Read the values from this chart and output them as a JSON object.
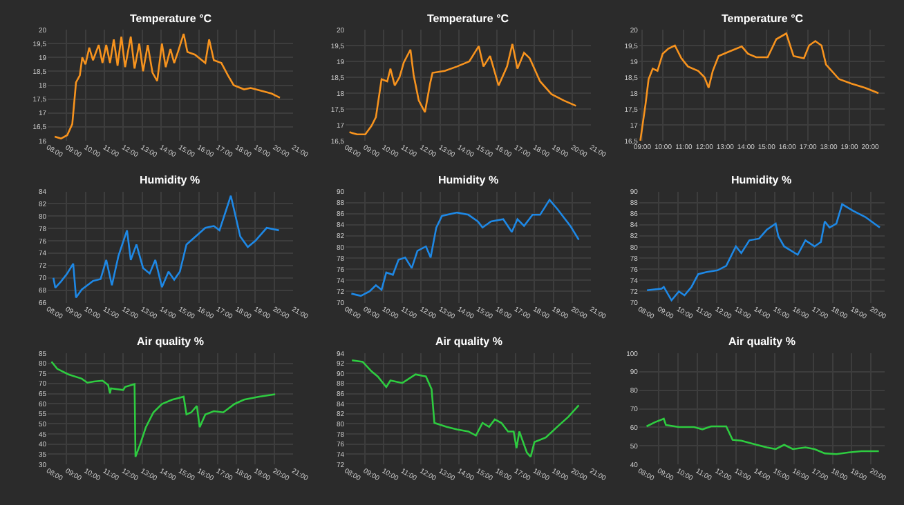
{
  "chart_data": [
    {
      "type": "line",
      "title": "Temperature °C",
      "color": "#f7931e",
      "grid": true,
      "xlim": [
        8,
        21
      ],
      "xticks": [
        {
          "value": 8,
          "label": "08:00"
        },
        {
          "value": 9,
          "label": "09:00"
        },
        {
          "value": 10,
          "label": "10:00"
        },
        {
          "value": 11,
          "label": "11:00"
        },
        {
          "value": 12,
          "label": "12:00"
        },
        {
          "value": 13,
          "label": "13:00"
        },
        {
          "value": 14,
          "label": "14:00"
        },
        {
          "value": 15,
          "label": "15:00"
        },
        {
          "value": 16,
          "label": "16:00"
        },
        {
          "value": 17,
          "label": "17:00"
        },
        {
          "value": 18,
          "label": "18:00"
        },
        {
          "value": 19,
          "label": "19:00"
        },
        {
          "value": 20,
          "label": "20:00"
        },
        {
          "value": 21,
          "label": "21:00"
        }
      ],
      "ylim": [
        16,
        20
      ],
      "yticks": [
        16,
        {
          "value": 16.5,
          "label": "16,5"
        },
        17,
        {
          "value": 17.5,
          "label": "17,5"
        },
        18,
        {
          "value": 18.5,
          "label": "18,5"
        },
        19,
        {
          "value": 19.5,
          "label": "19,5"
        },
        20
      ],
      "x": [
        8.37,
        8.7,
        9.03,
        9.3,
        9.5,
        9.7,
        9.83,
        10.0,
        10.2,
        10.4,
        10.7,
        10.9,
        11.1,
        11.3,
        11.5,
        11.7,
        11.9,
        12.1,
        12.4,
        12.6,
        12.85,
        13.05,
        13.3,
        13.55,
        13.8,
        14.05,
        14.25,
        14.5,
        14.7,
        14.9,
        15.2,
        15.4,
        15.8,
        16.35,
        16.55,
        16.8,
        17.2,
        17.55,
        17.85,
        18.4,
        18.75,
        19.3,
        19.85,
        20.3
      ],
      "values": [
        16.15,
        16.08,
        16.2,
        16.6,
        18.1,
        18.35,
        19.0,
        18.75,
        19.35,
        18.9,
        19.45,
        18.8,
        19.45,
        18.8,
        19.65,
        18.7,
        19.75,
        18.65,
        19.75,
        18.6,
        19.5,
        18.5,
        19.45,
        18.45,
        18.15,
        19.5,
        18.65,
        19.3,
        18.8,
        19.2,
        19.85,
        19.2,
        19.1,
        18.8,
        19.65,
        18.9,
        18.8,
        18.35,
        18.0,
        17.85,
        17.9,
        17.8,
        17.7,
        17.55
      ]
    },
    {
      "type": "line",
      "title": "Temperature °C",
      "color": "#f7931e",
      "grid": true,
      "xlim": [
        8,
        21
      ],
      "xticks": [
        {
          "value": 8,
          "label": "08:00"
        },
        {
          "value": 9,
          "label": "09:00"
        },
        {
          "value": 10,
          "label": "10:00"
        },
        {
          "value": 11,
          "label": "11:00"
        },
        {
          "value": 12,
          "label": "12:00"
        },
        {
          "value": 13,
          "label": "13:00"
        },
        {
          "value": 14,
          "label": "14:00"
        },
        {
          "value": 15,
          "label": "15:00"
        },
        {
          "value": 16,
          "label": "16:00"
        },
        {
          "value": 17,
          "label": "17:00"
        },
        {
          "value": 18,
          "label": "18:00"
        },
        {
          "value": 19,
          "label": "19:00"
        },
        {
          "value": 20,
          "label": "20:00"
        },
        {
          "value": 21,
          "label": "21:00"
        }
      ],
      "ylim": [
        16.5,
        20
      ],
      "yticks": [
        {
          "value": 16.5,
          "label": "16,5"
        },
        17,
        {
          "value": 17.5,
          "label": "17,5"
        },
        18,
        {
          "value": 18.5,
          "label": "18,5"
        },
        19,
        {
          "value": 19.5,
          "label": "19,5"
        },
        20
      ],
      "x": [
        8.2,
        8.6,
        9.04,
        9.37,
        9.6,
        9.9,
        10.2,
        10.37,
        10.6,
        10.85,
        11.08,
        11.43,
        11.6,
        11.87,
        12.2,
        12.47,
        12.6,
        13.25,
        13.9,
        14.55,
        15.05,
        15.3,
        15.65,
        16.1,
        16.55,
        16.83,
        17.1,
        17.45,
        17.75,
        18.3,
        18.9,
        19.55,
        20.2
      ],
      "values": [
        16.77,
        16.7,
        16.7,
        16.97,
        17.24,
        18.44,
        18.37,
        18.77,
        18.24,
        18.5,
        18.97,
        19.37,
        18.57,
        17.77,
        17.4,
        18.3,
        18.64,
        18.7,
        18.84,
        19.0,
        19.48,
        18.84,
        19.17,
        18.24,
        18.84,
        19.55,
        18.77,
        19.27,
        19.1,
        18.37,
        17.97,
        17.77,
        17.6
      ]
    },
    {
      "type": "line",
      "title": "Temperature °C",
      "color": "#f7931e",
      "grid": true,
      "xlim": [
        8.85,
        20.7
      ],
      "xticks": [
        {
          "value": 9,
          "label": "09:00"
        },
        {
          "value": 10,
          "label": "10:00"
        },
        {
          "value": 11,
          "label": "11:00"
        },
        {
          "value": 12,
          "label": "12:00"
        },
        {
          "value": 13,
          "label": "13:00"
        },
        {
          "value": 14,
          "label": "14:00"
        },
        {
          "value": 15,
          "label": "15:00"
        },
        {
          "value": 16,
          "label": "16:00"
        },
        {
          "value": 17,
          "label": "17:00"
        },
        {
          "value": 18,
          "label": "18:00"
        },
        {
          "value": 19,
          "label": "19:00"
        },
        {
          "value": 20,
          "label": "20:00"
        }
      ],
      "ylim": [
        16.5,
        20
      ],
      "yticks": [
        {
          "value": 16.5,
          "label": "16,5"
        },
        17,
        {
          "value": 17.5,
          "label": "17,5"
        },
        18,
        {
          "value": 18.5,
          "label": "18,5"
        },
        19,
        {
          "value": 19.5,
          "label": "19,5"
        },
        20
      ],
      "x": [
        8.9,
        9.15,
        9.3,
        9.5,
        9.73,
        9.98,
        10.25,
        10.57,
        10.88,
        11.2,
        11.7,
        12.0,
        12.2,
        12.4,
        12.68,
        13.15,
        13.8,
        14.1,
        14.5,
        15.05,
        15.47,
        15.95,
        16.3,
        16.8,
        17.05,
        17.35,
        17.65,
        17.87,
        18.5,
        19.1,
        19.75,
        20.4
      ],
      "values": [
        16.5,
        17.64,
        18.44,
        18.77,
        18.7,
        19.24,
        19.4,
        19.5,
        19.1,
        18.84,
        18.7,
        18.5,
        18.17,
        18.7,
        19.17,
        19.3,
        19.47,
        19.24,
        19.13,
        19.13,
        19.7,
        19.88,
        19.17,
        19.1,
        19.5,
        19.64,
        19.5,
        18.9,
        18.44,
        18.3,
        18.17,
        18.0
      ]
    },
    {
      "type": "line",
      "title": "Humidity %",
      "color": "#1e88e5",
      "grid": true,
      "xlim": [
        8,
        21
      ],
      "xticks": [
        {
          "value": 8,
          "label": "08:00"
        },
        {
          "value": 9,
          "label": "09:00"
        },
        {
          "value": 10,
          "label": "10:00"
        },
        {
          "value": 11,
          "label": "11:00"
        },
        {
          "value": 12,
          "label": "12:00"
        },
        {
          "value": 13,
          "label": "13:00"
        },
        {
          "value": 14,
          "label": "14:00"
        },
        {
          "value": 15,
          "label": "15:00"
        },
        {
          "value": 16,
          "label": "16:00"
        },
        {
          "value": 17,
          "label": "17:00"
        },
        {
          "value": 18,
          "label": "18:00"
        },
        {
          "value": 19,
          "label": "19:00"
        },
        {
          "value": 20,
          "label": "20:00"
        },
        {
          "value": 21,
          "label": "21:00"
        }
      ],
      "ylim": [
        66,
        84
      ],
      "yticks": [
        66,
        68,
        70,
        72,
        74,
        76,
        78,
        80,
        82,
        84
      ],
      "x": [
        8.3,
        8.4,
        8.7,
        9.03,
        9.35,
        9.5,
        9.8,
        10.1,
        10.4,
        10.8,
        11.1,
        11.4,
        11.75,
        12.2,
        12.4,
        12.7,
        13.05,
        13.4,
        13.7,
        14.05,
        14.4,
        14.7,
        15.0,
        15.35,
        16.35,
        16.8,
        17.1,
        17.7,
        18.2,
        18.6,
        19.0,
        19.6,
        20.25
      ],
      "values": [
        70,
        68.4,
        69.4,
        70.7,
        72.3,
        66.8,
        68.1,
        68.8,
        69.5,
        69.8,
        72.9,
        68.8,
        73.6,
        77.7,
        72.9,
        75.4,
        71.6,
        70.7,
        72.9,
        68.5,
        71.0,
        69.7,
        71.0,
        75.4,
        78.1,
        78.4,
        77.7,
        83.3,
        76.7,
        75.0,
        76.0,
        78.1,
        77.7
      ]
    },
    {
      "type": "line",
      "title": "Humidity %",
      "color": "#1e88e5",
      "grid": true,
      "xlim": [
        8,
        21
      ],
      "xticks": [
        {
          "value": 8,
          "label": "08:00"
        },
        {
          "value": 9,
          "label": "09:00"
        },
        {
          "value": 10,
          "label": "10:00"
        },
        {
          "value": 11,
          "label": "11:00"
        },
        {
          "value": 12,
          "label": "12:00"
        },
        {
          "value": 13,
          "label": "13:00"
        },
        {
          "value": 14,
          "label": "14:00"
        },
        {
          "value": 15,
          "label": "15:00"
        },
        {
          "value": 16,
          "label": "16:00"
        },
        {
          "value": 17,
          "label": "17:00"
        },
        {
          "value": 18,
          "label": "18:00"
        },
        {
          "value": 19,
          "label": "19:00"
        },
        {
          "value": 20,
          "label": "20:00"
        },
        {
          "value": 21,
          "label": "21:00"
        }
      ],
      "ylim": [
        70,
        90
      ],
      "yticks": [
        70,
        72,
        74,
        76,
        78,
        80,
        82,
        84,
        86,
        88,
        90
      ],
      "x": [
        8.3,
        8.8,
        9.26,
        9.6,
        9.9,
        10.15,
        10.5,
        10.8,
        11.15,
        11.5,
        11.8,
        12.25,
        12.5,
        12.8,
        13.1,
        13.9,
        14.5,
        15.0,
        15.25,
        15.7,
        16.35,
        16.8,
        17.1,
        17.45,
        17.9,
        18.3,
        18.8,
        19.2,
        19.9,
        20.35
      ],
      "values": [
        71.6,
        71.2,
        72.0,
        73.1,
        72.3,
        75.4,
        75.0,
        77.7,
        78.1,
        76.2,
        79.3,
        80.1,
        78.1,
        83.5,
        85.6,
        86.2,
        85.8,
        84.6,
        83.5,
        84.6,
        85.0,
        82.7,
        85.0,
        83.8,
        85.8,
        85.8,
        88.5,
        86.9,
        83.8,
        81.3
      ]
    },
    {
      "type": "line",
      "title": "Humidity %",
      "color": "#1e88e5",
      "grid": true,
      "xlim": [
        8,
        20.7
      ],
      "xticks": [
        {
          "value": 8,
          "label": "08:00"
        },
        {
          "value": 9,
          "label": "09:00"
        },
        {
          "value": 10,
          "label": "10:00"
        },
        {
          "value": 11,
          "label": "11:00"
        },
        {
          "value": 12,
          "label": "12:00"
        },
        {
          "value": 13,
          "label": "13:00"
        },
        {
          "value": 14,
          "label": "14:00"
        },
        {
          "value": 15,
          "label": "15:00"
        },
        {
          "value": 16,
          "label": "16:00"
        },
        {
          "value": 17,
          "label": "17:00"
        },
        {
          "value": 18,
          "label": "18:00"
        },
        {
          "value": 19,
          "label": "19:00"
        },
        {
          "value": 20,
          "label": "20:00"
        }
      ],
      "ylim": [
        70,
        90
      ],
      "yticks": [
        70,
        72,
        74,
        76,
        78,
        80,
        82,
        84,
        86,
        88,
        90
      ],
      "x": [
        8.4,
        9.16,
        9.27,
        9.67,
        10.05,
        10.34,
        10.7,
        11.05,
        11.5,
        12.05,
        12.5,
        13.0,
        13.28,
        13.7,
        14.2,
        14.6,
        15.06,
        15.2,
        15.5,
        16.2,
        16.6,
        17.07,
        17.4,
        17.6,
        17.85,
        18.2,
        18.5,
        19.07,
        19.7,
        20.45
      ],
      "values": [
        72.2,
        72.5,
        72.8,
        70.4,
        72.0,
        71.3,
        72.8,
        75.1,
        75.5,
        75.8,
        76.6,
        80.1,
        78.9,
        81.2,
        81.5,
        83.1,
        84.2,
        81.9,
        80.1,
        78.6,
        81.2,
        80.1,
        80.9,
        84.6,
        83.5,
        84.2,
        87.7,
        86.5,
        85.4,
        83.5
      ]
    },
    {
      "type": "line",
      "title": "Air quality %",
      "color": "#2ecc40",
      "grid": true,
      "xlim": [
        8,
        21
      ],
      "xticks": [
        {
          "value": 8,
          "label": "08:00"
        },
        {
          "value": 9,
          "label": "09:00"
        },
        {
          "value": 10,
          "label": "10:00"
        },
        {
          "value": 11,
          "label": "11:00"
        },
        {
          "value": 12,
          "label": "12:00"
        },
        {
          "value": 13,
          "label": "13:00"
        },
        {
          "value": 14,
          "label": "14:00"
        },
        {
          "value": 15,
          "label": "15:00"
        },
        {
          "value": 16,
          "label": "16:00"
        },
        {
          "value": 17,
          "label": "17:00"
        },
        {
          "value": 18,
          "label": "18:00"
        },
        {
          "value": 19,
          "label": "19:00"
        },
        {
          "value": 20,
          "label": "20:00"
        },
        {
          "value": 21,
          "label": "21:00"
        }
      ],
      "ylim": [
        30,
        85
      ],
      "yticks": [
        30,
        35,
        40,
        45,
        50,
        55,
        60,
        65,
        70,
        75,
        80,
        85
      ],
      "x": [
        8.2,
        8.5,
        9.1,
        9.8,
        10.1,
        10.45,
        10.9,
        11.2,
        11.3,
        11.35,
        12.0,
        12.1,
        12.6,
        12.65,
        12.9,
        13.2,
        13.6,
        14.05,
        14.6,
        15.2,
        15.35,
        15.6,
        15.9,
        16.05,
        16.35,
        16.8,
        17.3,
        17.9,
        18.4,
        19.2,
        20.05
      ],
      "values": [
        80.8,
        77.3,
        74.5,
        72.4,
        70.4,
        71,
        71.4,
        69.3,
        65.1,
        67.6,
        66.8,
        68.3,
        69.7,
        33.7,
        40,
        48.4,
        55.7,
        59.9,
        62,
        63.5,
        54.7,
        55.7,
        58.9,
        48.4,
        54.7,
        56.3,
        55.7,
        59.9,
        62,
        63.5,
        64.7
      ]
    },
    {
      "type": "line",
      "title": "Air quality %",
      "color": "#2ecc40",
      "grid": true,
      "xlim": [
        8,
        21
      ],
      "xticks": [
        {
          "value": 8,
          "label": "08:00"
        },
        {
          "value": 9,
          "label": "09:00"
        },
        {
          "value": 10,
          "label": "10:00"
        },
        {
          "value": 11,
          "label": "11:00"
        },
        {
          "value": 12,
          "label": "12:00"
        },
        {
          "value": 13,
          "label": "13:00"
        },
        {
          "value": 14,
          "label": "14:00"
        },
        {
          "value": 15,
          "label": "15:00"
        },
        {
          "value": 16,
          "label": "16:00"
        },
        {
          "value": 17,
          "label": "17:00"
        },
        {
          "value": 18,
          "label": "18:00"
        },
        {
          "value": 19,
          "label": "19:00"
        },
        {
          "value": 20,
          "label": "20:00"
        },
        {
          "value": 21,
          "label": "21:00"
        }
      ],
      "ylim": [
        72,
        94
      ],
      "yticks": [
        72,
        74,
        76,
        78,
        80,
        82,
        84,
        86,
        88,
        90,
        92,
        94
      ],
      "x": [
        8.33,
        8.9,
        9.37,
        9.7,
        10.15,
        10.37,
        11.0,
        11.7,
        12.25,
        12.55,
        12.7,
        13.35,
        13.9,
        14.5,
        14.9,
        15.25,
        15.6,
        15.9,
        16.25,
        16.6,
        16.9,
        17.05,
        17.2,
        17.6,
        17.8,
        18.0,
        18.6,
        19.2,
        19.8,
        20.35
      ],
      "values": [
        92.6,
        92.3,
        90.4,
        89.4,
        87.3,
        88.6,
        88.1,
        89.8,
        89.4,
        86.9,
        80.2,
        79.4,
        78.9,
        78.5,
        77.7,
        80.2,
        79.4,
        80.9,
        80.2,
        78.5,
        78.5,
        75.2,
        78.5,
        74.3,
        73.5,
        76.4,
        77.3,
        79.4,
        81.4,
        83.7
      ]
    },
    {
      "type": "line",
      "title": "Air quality %",
      "color": "#2ecc40",
      "grid": true,
      "xlim": [
        8,
        20.7
      ],
      "xticks": [
        {
          "value": 8,
          "label": "08:00"
        },
        {
          "value": 9,
          "label": "09:00"
        },
        {
          "value": 10,
          "label": "10:00"
        },
        {
          "value": 11,
          "label": "11:00"
        },
        {
          "value": 12,
          "label": "12:00"
        },
        {
          "value": 13,
          "label": "13:00"
        },
        {
          "value": 14,
          "label": "14:00"
        },
        {
          "value": 15,
          "label": "15:00"
        },
        {
          "value": 16,
          "label": "16:00"
        },
        {
          "value": 17,
          "label": "17:00"
        },
        {
          "value": 18,
          "label": "18:00"
        },
        {
          "value": 19,
          "label": "19:00"
        },
        {
          "value": 20,
          "label": "20:00"
        }
      ],
      "ylim": [
        40,
        100
      ],
      "yticks": [
        40,
        50,
        60,
        70,
        80,
        90,
        100
      ],
      "x": [
        8.38,
        8.82,
        9.27,
        9.38,
        10.05,
        10.83,
        11.27,
        11.72,
        12.5,
        12.83,
        13.28,
        13.94,
        14.6,
        15.06,
        15.5,
        15.95,
        16.6,
        17.07,
        17.6,
        18.2,
        18.85,
        19.5,
        20.4
      ],
      "values": [
        60.5,
        62.8,
        64.6,
        61.2,
        60.1,
        60.1,
        58.9,
        60.5,
        60.5,
        53.2,
        52.8,
        50.9,
        49.1,
        48.2,
        50.5,
        48.2,
        49.1,
        48.2,
        45.9,
        45.5,
        46.4,
        47.1,
        47.1
      ]
    }
  ]
}
